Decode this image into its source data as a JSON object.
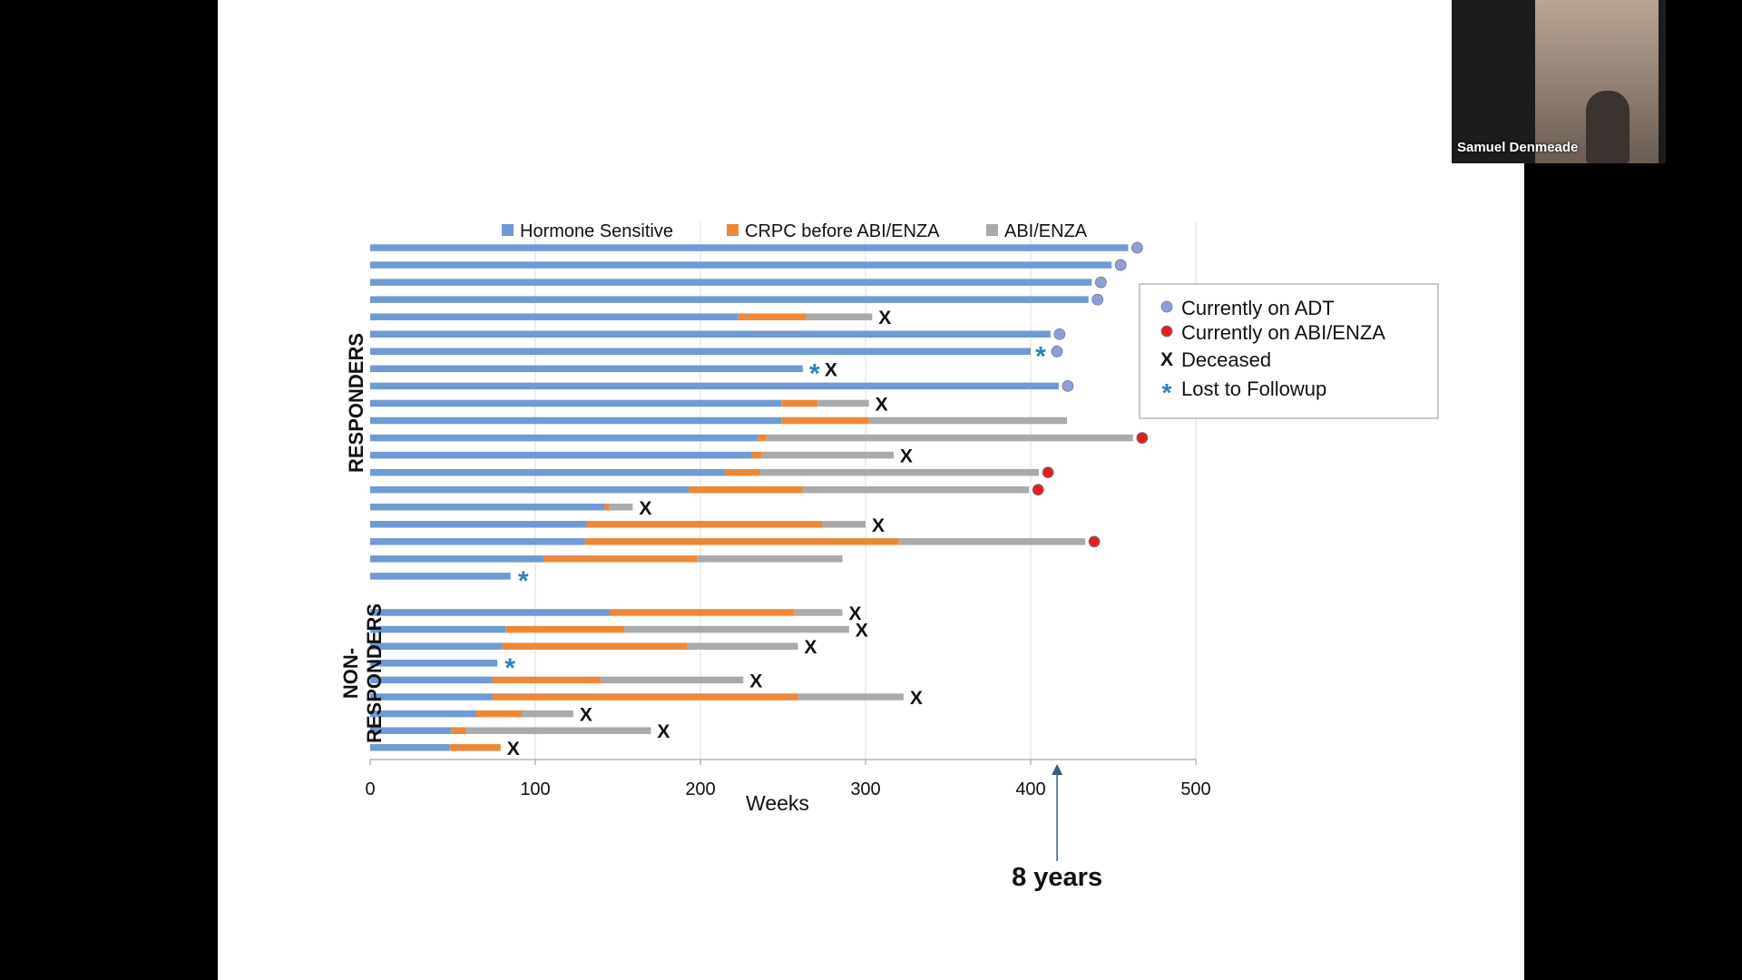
{
  "video": {
    "participant_name": "Samuel Denmeade"
  },
  "colors": {
    "hormone_sensitive": "#6f9ad4",
    "crpc": "#ec8838",
    "abi_enza": "#aaaaaa",
    "adt_marker": "#8f9fd6",
    "abi_marker": "#e02020",
    "lost_marker": "#2f7fbf",
    "text": "#111111"
  },
  "chart_data": {
    "type": "bar",
    "orientation": "horizontal",
    "stacked": true,
    "xlabel": "Weeks",
    "xlim": [
      0,
      500
    ],
    "x_ticks": [
      0,
      100,
      200,
      300,
      400,
      500
    ],
    "grid": "vertical",
    "group_labels": [
      "RESPONDERS",
      "NON-RESPONDERS"
    ],
    "legend_top": [
      "Hormone Sensitive",
      "CRPC before ABI/ENZA",
      "ABI/ENZA"
    ],
    "legend_markers": [
      {
        "label": "Currently on ADT",
        "symbol": "circle",
        "color": "#8f9fd6"
      },
      {
        "label": "Currently on ABI/ENZA",
        "symbol": "circle",
        "color": "#e02020"
      },
      {
        "label": "Deceased",
        "symbol": "X"
      },
      {
        "label": "Lost to Followup",
        "symbol": "*"
      }
    ],
    "marker_symbols": {
      "deceased": "X",
      "lost": "*"
    },
    "annotation": {
      "label": "8 years",
      "x": 416
    },
    "series_names": [
      "Hormone Sensitive",
      "CRPC before ABI/ENZA",
      "ABI/ENZA"
    ],
    "patients": [
      {
        "group": "RESPONDERS",
        "hs": 459,
        "crpc": 0,
        "abi": 0,
        "end": "adt"
      },
      {
        "group": "RESPONDERS",
        "hs": 449,
        "crpc": 0,
        "abi": 0,
        "end": "adt"
      },
      {
        "group": "RESPONDERS",
        "hs": 437,
        "crpc": 0,
        "abi": 0,
        "end": "adt"
      },
      {
        "group": "RESPONDERS",
        "hs": 435,
        "crpc": 0,
        "abi": 0,
        "end": "adt"
      },
      {
        "group": "RESPONDERS",
        "hs": 223,
        "crpc": 41,
        "abi": 40,
        "end": "deceased"
      },
      {
        "group": "RESPONDERS",
        "hs": 412,
        "crpc": 0,
        "abi": 0,
        "end": "adt"
      },
      {
        "group": "RESPONDERS",
        "hs": 400,
        "crpc": 0,
        "abi": 0,
        "end": "lost+adt"
      },
      {
        "group": "RESPONDERS",
        "hs": 262,
        "crpc": 0,
        "abi": 0,
        "end": "lost+deceased"
      },
      {
        "group": "RESPONDERS",
        "hs": 417,
        "crpc": 0,
        "abi": 0,
        "end": "adt"
      },
      {
        "group": "RESPONDERS",
        "hs": 249,
        "crpc": 22,
        "abi": 31,
        "end": "deceased"
      },
      {
        "group": "RESPONDERS",
        "hs": 249,
        "crpc": 53,
        "abi": 120,
        "end": ""
      },
      {
        "group": "RESPONDERS",
        "hs": 235,
        "crpc": 5,
        "abi": 222,
        "end": "abi"
      },
      {
        "group": "RESPONDERS",
        "hs": 231,
        "crpc": 6,
        "abi": 80,
        "end": "deceased"
      },
      {
        "group": "RESPONDERS",
        "hs": 215,
        "crpc": 21,
        "abi": 169,
        "end": "abi"
      },
      {
        "group": "RESPONDERS",
        "hs": 193,
        "crpc": 69,
        "abi": 137,
        "end": "abi"
      },
      {
        "group": "RESPONDERS",
        "hs": 142,
        "crpc": 3,
        "abi": 14,
        "end": "deceased"
      },
      {
        "group": "RESPONDERS",
        "hs": 131,
        "crpc": 143,
        "abi": 26,
        "end": "deceased"
      },
      {
        "group": "RESPONDERS",
        "hs": 130,
        "crpc": 190,
        "abi": 113,
        "end": "abi"
      },
      {
        "group": "RESPONDERS",
        "hs": 105,
        "crpc": 93,
        "abi": 88,
        "end": ""
      },
      {
        "group": "RESPONDERS",
        "hs": 85,
        "crpc": 0,
        "abi": 0,
        "end": "lost"
      },
      {
        "group": "NON-RESPONDERS",
        "hs": 145,
        "crpc": 112,
        "abi": 29,
        "end": "deceased"
      },
      {
        "group": "NON-RESPONDERS",
        "hs": 82,
        "crpc": 72,
        "abi": 136,
        "end": "deceased"
      },
      {
        "group": "NON-RESPONDERS",
        "hs": 80,
        "crpc": 112,
        "abi": 67,
        "end": "deceased"
      },
      {
        "group": "NON-RESPONDERS",
        "hs": 77,
        "crpc": 0,
        "abi": 0,
        "end": "lost"
      },
      {
        "group": "NON-RESPONDERS",
        "hs": 74,
        "crpc": 66,
        "abi": 86,
        "end": "deceased"
      },
      {
        "group": "NON-RESPONDERS",
        "hs": 74,
        "crpc": 185,
        "abi": 64,
        "end": "deceased"
      },
      {
        "group": "NON-RESPONDERS",
        "hs": 64,
        "crpc": 28,
        "abi": 31,
        "end": "deceased"
      },
      {
        "group": "NON-RESPONDERS",
        "hs": 49,
        "crpc": 9,
        "abi": 112,
        "end": "deceased"
      },
      {
        "group": "NON-RESPONDERS",
        "hs": 48,
        "crpc": 31,
        "abi": 0,
        "end": "deceased"
      }
    ]
  }
}
